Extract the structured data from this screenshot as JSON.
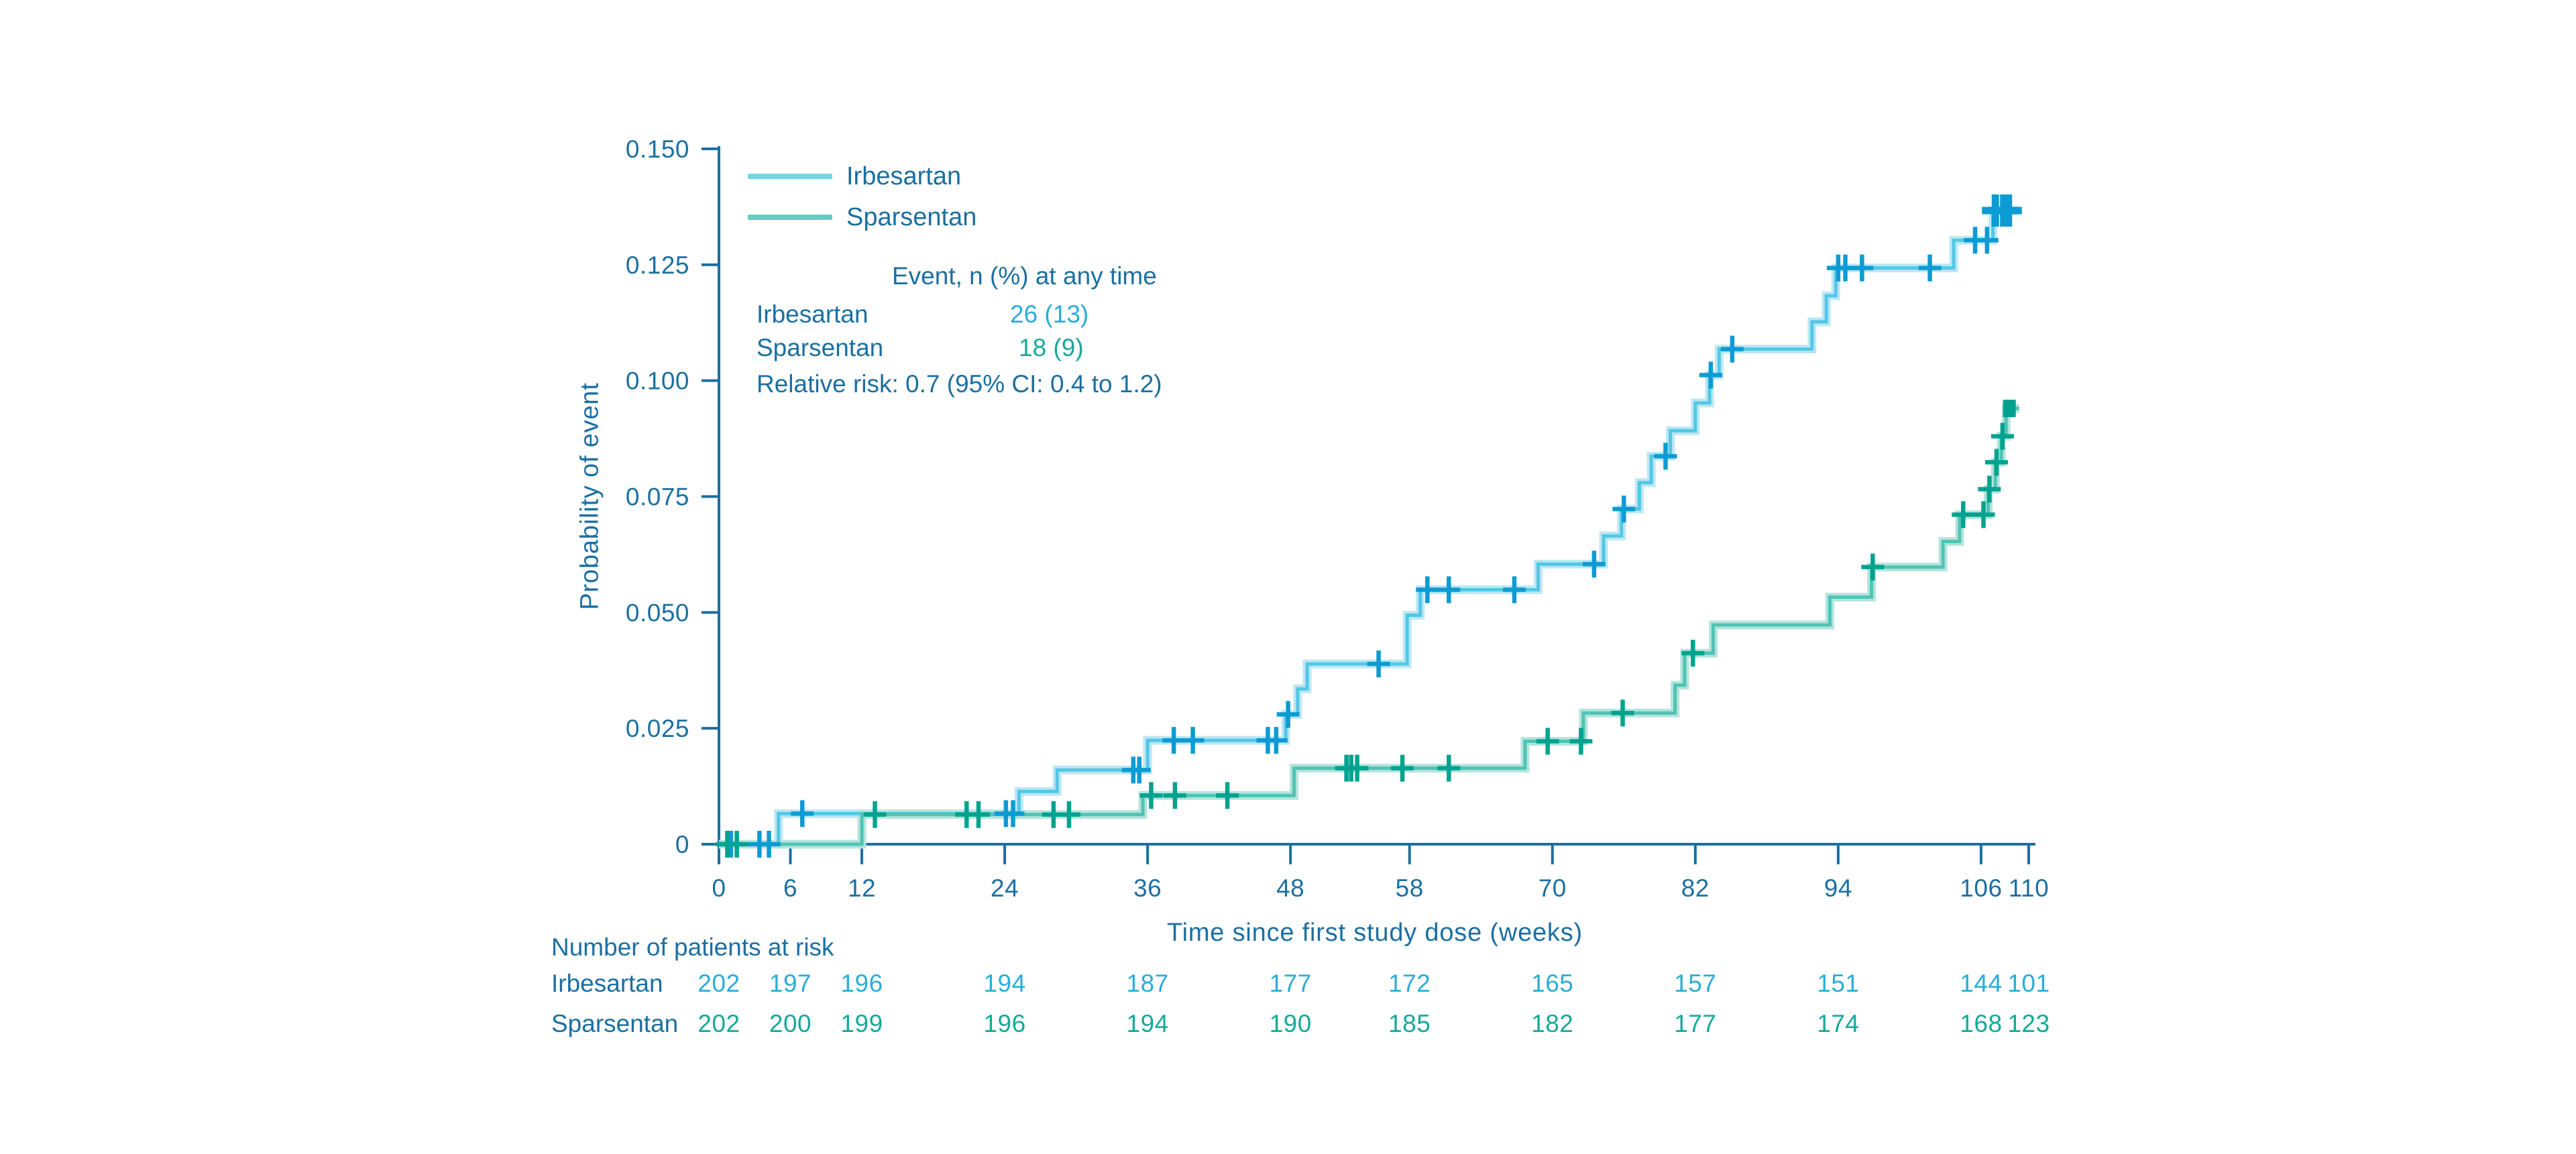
{
  "figure": {
    "y_axis_title": "Probability of event",
    "x_axis_title": "Time since first study dose (weeks)"
  },
  "colors": {
    "text_blue": "#1B6FA1",
    "irbesartan_legend": "#7AD3E8",
    "sparsentan_legend": "#63CDC3",
    "irbesartan_value": "#29ADD8",
    "sparsentan_value": "#14A99A"
  },
  "legend": {
    "items": [
      {
        "label": "Irbesartan",
        "color": "#7AD3E8"
      },
      {
        "label": "Sparsentan",
        "color": "#63CDC3"
      }
    ]
  },
  "annotation": {
    "header": "Event, n (%) at any time",
    "rows": [
      {
        "label": "Irbesartan",
        "value": "26 (13)",
        "color": "#29ADD8"
      },
      {
        "label": "Sparsentan",
        "value": "18 (9)",
        "color": "#14A99A"
      }
    ],
    "relative_risk": "Relative risk: 0.7 (95% CI: 0.4 to 1.2)"
  },
  "risk_table": {
    "title": "Number of patients at risk",
    "time_points": [
      0,
      6,
      12,
      24,
      36,
      48,
      58,
      70,
      82,
      94,
      106,
      110
    ],
    "rows": [
      {
        "label": "Irbesartan",
        "color": "#29ADD8",
        "values": [
          "202",
          "197",
          "196",
          "194",
          "187",
          "177",
          "172",
          "165",
          "157",
          "151",
          "144",
          "101"
        ]
      },
      {
        "label": "Sparsentan",
        "color": "#14A99A",
        "values": [
          "202",
          "200",
          "199",
          "196",
          "194",
          "190",
          "185",
          "182",
          "177",
          "174",
          "168",
          "123"
        ]
      }
    ]
  },
  "chart_data": {
    "type": "line",
    "subtype": "kaplan-meier-step",
    "title": "",
    "xlabel": "Time since first study dose (weeks)",
    "ylabel": "Probability of event",
    "xlim": [
      0,
      110
    ],
    "ylim": [
      0,
      0.15
    ],
    "grid": false,
    "legend_position": "top-left-inside",
    "x_ticks": [
      0,
      6,
      12,
      24,
      36,
      48,
      58,
      70,
      82,
      94,
      106,
      110
    ],
    "x_tick_labels": [
      "0",
      "6",
      "12",
      "24",
      "36",
      "48",
      "58",
      "70",
      "82",
      "94",
      "106",
      "110"
    ],
    "y_ticks": [
      0,
      0.025,
      0.05,
      0.075,
      0.1,
      0.125,
      0.15
    ],
    "y_tick_labels": [
      "0",
      "0.025",
      "0.050",
      "0.075",
      "0.100",
      "0.125",
      "0.150"
    ],
    "series": [
      {
        "name": "Irbesartan",
        "color": "#53C7E6",
        "halo": "#BCE7F4",
        "censor_color": "#0D9BD3",
        "start": [
          0,
          0
        ],
        "end_t": 109.1,
        "steps": [
          [
            5.0,
            0.0066
          ],
          [
            25.2,
            0.0114
          ],
          [
            28.4,
            0.016
          ],
          [
            36.0,
            0.0224
          ],
          [
            47.6,
            0.028
          ],
          [
            48.6,
            0.0335
          ],
          [
            49.4,
            0.0389
          ],
          [
            57.8,
            0.0494
          ],
          [
            58.9,
            0.0549
          ],
          [
            68.8,
            0.0604
          ],
          [
            74.3,
            0.0665
          ],
          [
            75.8,
            0.0723
          ],
          [
            77.3,
            0.078
          ],
          [
            78.3,
            0.0837
          ],
          [
            79.9,
            0.0892
          ],
          [
            82.0,
            0.0952
          ],
          [
            83.2,
            0.1012
          ],
          [
            84.0,
            0.1068
          ],
          [
            91.8,
            0.1127
          ],
          [
            93.0,
            0.1183
          ],
          [
            93.8,
            0.1243
          ],
          [
            103.7,
            0.1303
          ],
          [
            107.0,
            0.1367
          ]
        ],
        "censors": [
          [
            1.0,
            0
          ],
          [
            3.4,
            0
          ],
          [
            4.2,
            0
          ],
          [
            7.0,
            0.0066
          ],
          [
            24.1,
            0.0066
          ],
          [
            24.7,
            0.0066
          ],
          [
            34.8,
            0.016
          ],
          [
            35.3,
            0.016
          ],
          [
            38.2,
            0.0224
          ],
          [
            39.8,
            0.0224
          ],
          [
            46.1,
            0.0224
          ],
          [
            46.8,
            0.0224
          ],
          [
            47.8,
            0.028
          ],
          [
            55.4,
            0.0389
          ],
          [
            59.5,
            0.0549
          ],
          [
            61.3,
            0.0549
          ],
          [
            66.8,
            0.0549
          ],
          [
            73.5,
            0.0604
          ],
          [
            76.0,
            0.0723
          ],
          [
            79.5,
            0.0837
          ],
          [
            83.3,
            0.1012
          ],
          [
            85.1,
            0.1068
          ],
          [
            94.0,
            0.1243
          ],
          [
            94.6,
            0.1243
          ],
          [
            96.0,
            0.1243
          ],
          [
            101.7,
            0.1243
          ],
          [
            105.5,
            0.1303
          ],
          [
            106.5,
            0.1303
          ]
        ],
        "bold_censors": [
          [
            107.2,
            0.1367
          ],
          [
            107.9,
            0.1367
          ],
          [
            108.3,
            0.1367
          ]
        ],
        "event_summary": "26 (13)"
      },
      {
        "name": "Sparsentan",
        "color": "#4FC4B4",
        "halo": "#B5E4DC",
        "censor_color": "#00A38F",
        "start": [
          0,
          0
        ],
        "end_t": 109.2,
        "steps": [
          [
            12.0,
            0.0064
          ],
          [
            35.6,
            0.0105
          ],
          [
            48.3,
            0.0164
          ],
          [
            67.7,
            0.0222
          ],
          [
            72.6,
            0.0283
          ],
          [
            80.3,
            0.0343
          ],
          [
            81.1,
            0.0412
          ],
          [
            83.5,
            0.0473
          ],
          [
            93.3,
            0.0533
          ],
          [
            96.8,
            0.0598
          ],
          [
            102.8,
            0.0653
          ],
          [
            104.2,
            0.0711
          ],
          [
            106.6,
            0.0766
          ],
          [
            107.2,
            0.0824
          ],
          [
            107.7,
            0.088
          ],
          [
            108.1,
            0.094
          ]
        ],
        "censors": [
          [
            0.7,
            0
          ],
          [
            1.5,
            0
          ],
          [
            13.1,
            0.0064
          ],
          [
            20.8,
            0.0064
          ],
          [
            21.8,
            0.0064
          ],
          [
            28.1,
            0.0064
          ],
          [
            29.4,
            0.0064
          ],
          [
            36.3,
            0.0105
          ],
          [
            38.3,
            0.0105
          ],
          [
            42.7,
            0.0105
          ],
          [
            52.7,
            0.0164
          ],
          [
            53.1,
            0.0164
          ],
          [
            53.6,
            0.0164
          ],
          [
            57.4,
            0.0164
          ],
          [
            61.3,
            0.0164
          ],
          [
            69.6,
            0.0222
          ],
          [
            72.4,
            0.0222
          ],
          [
            75.9,
            0.0283
          ],
          [
            81.8,
            0.0412
          ],
          [
            96.9,
            0.0598
          ],
          [
            104.5,
            0.0711
          ],
          [
            106.2,
            0.0711
          ],
          [
            106.7,
            0.0766
          ],
          [
            107.3,
            0.0824
          ],
          [
            107.8,
            0.088
          ]
        ],
        "bold_censors": [],
        "end_marker": {
          "t": 108.35,
          "p": 0.094,
          "shape": "square",
          "color": "#00A08E"
        },
        "event_summary": "18 (9)"
      }
    ]
  }
}
